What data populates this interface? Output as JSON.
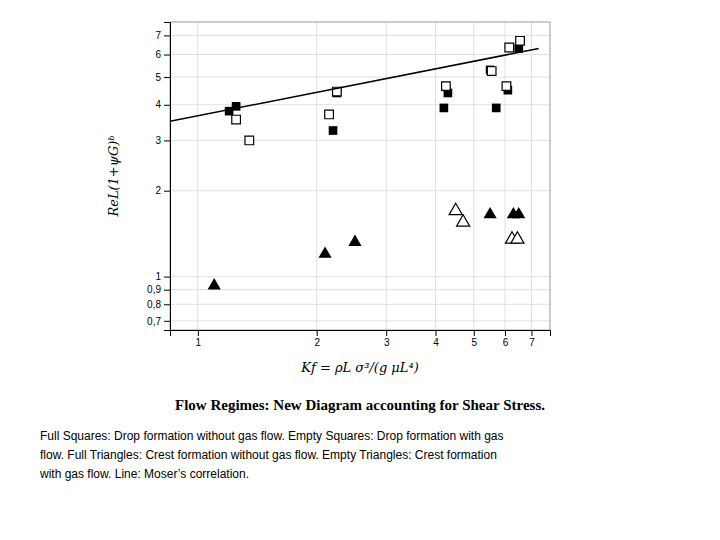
{
  "chart_data": {
    "type": "scatter",
    "title": "Flow Regimes: New Diagram accounting for Shear Stress.",
    "x_label": "Kf = ρL σ³/(g μL⁴)",
    "y_label": "ReL(1+ψG)ᵇ",
    "annotations": [
      "Full Squares: Drop formation without gas flow. Empty Squares: Drop formation with gas",
      "flow. Full Triangles: Crest formation without gas flow. Empty Triangles: Crest formation",
      "with gas flow. Line: Moser’s correlation."
    ],
    "log": true,
    "grid": true,
    "xlim": [
      0.85,
      7.8
    ],
    "ylim": [
      0.65,
      7.8
    ],
    "xticks": [
      1,
      2,
      3,
      4,
      5,
      6,
      7
    ],
    "yticks": [
      {
        "value": 0.7,
        "label": "0,7"
      },
      {
        "value": 0.8,
        "label": "0,8"
      },
      {
        "value": 0.9,
        "label": "0,9"
      },
      1,
      2,
      3,
      4,
      5,
      6,
      7
    ],
    "series": [
      {
        "type": "scatter",
        "marker": "square",
        "color": "#000000",
        "x": [
          1.2,
          1.25,
          2.2,
          2.25,
          4.2,
          4.3,
          5.5,
          5.7,
          6.1,
          6.5
        ],
        "values": [
          3.8,
          3.95,
          3.25,
          4.4,
          3.9,
          4.4,
          5.3,
          3.9,
          4.5,
          6.3
        ]
      },
      {
        "type": "scatter",
        "marker": "square-open",
        "color": "#000000",
        "x": [
          1.25,
          1.35,
          2.15,
          2.25,
          4.25,
          5.55,
          6.05,
          6.15,
          6.55
        ],
        "values": [
          3.55,
          3.0,
          3.7,
          4.45,
          4.65,
          5.25,
          4.65,
          6.35,
          6.7
        ]
      },
      {
        "type": "scatter",
        "marker": "triangle",
        "color": "#000000",
        "x": [
          1.1,
          2.1,
          2.5,
          5.5,
          6.3,
          6.5
        ],
        "values": [
          0.93,
          1.2,
          1.32,
          1.65,
          1.65,
          1.65
        ]
      },
      {
        "type": "scatter",
        "marker": "triangle-open",
        "color": "#000000",
        "x": [
          4.5,
          4.7,
          6.25,
          6.45
        ],
        "values": [
          1.7,
          1.55,
          1.35,
          1.35
        ]
      },
      {
        "type": "line",
        "line_style": "solid",
        "color": "#000000",
        "x": [
          0.85,
          7.3
        ],
        "values": [
          3.5,
          6.3
        ]
      }
    ]
  }
}
